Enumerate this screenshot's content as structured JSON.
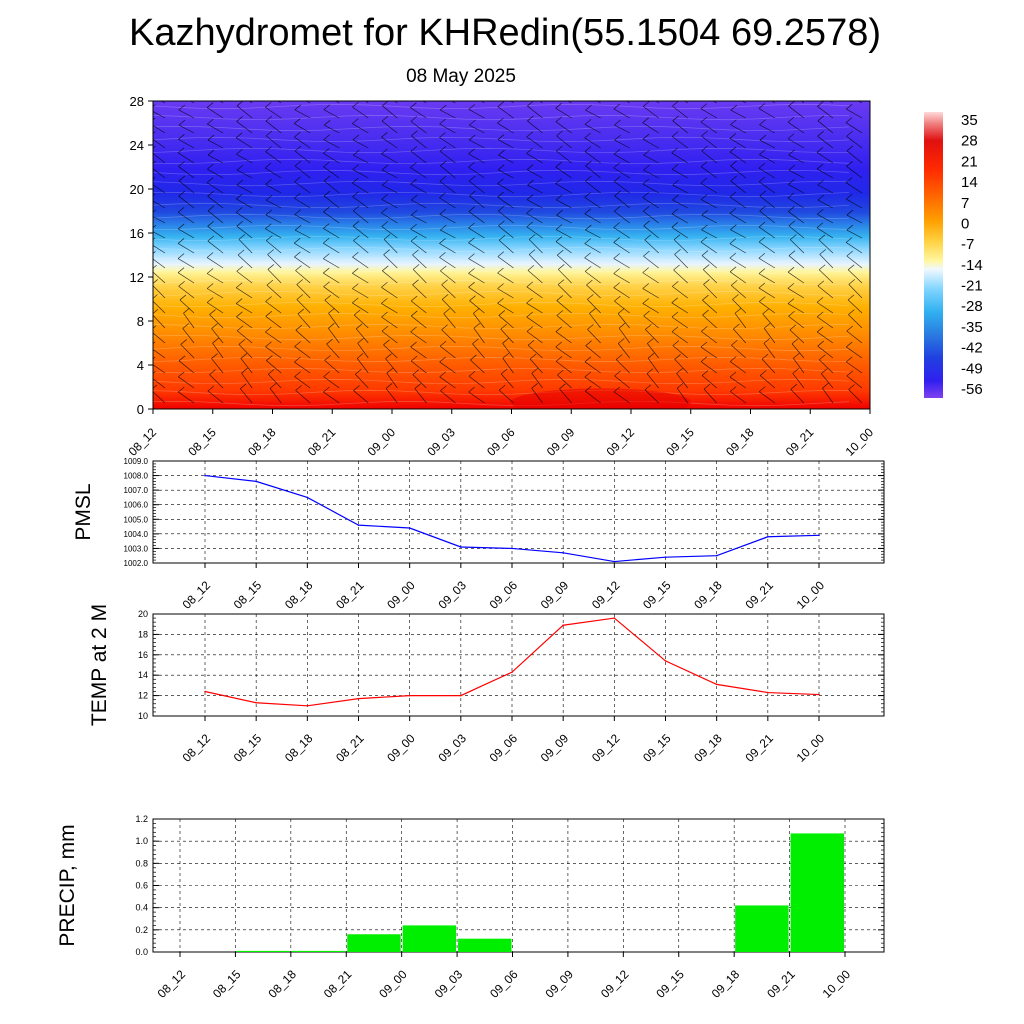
{
  "title": "Kazhydromet for KHRedin(55.1504 69.2578)",
  "subtitle": "08 May 2025",
  "colors": {
    "pmsl": "#0000ff",
    "temp": "#ff0000",
    "precip": "#00ee00"
  },
  "chart_data": [
    {
      "type": "heatmap",
      "name": "cross-section",
      "x_labels": [
        "08_12",
        "08_15",
        "08_18",
        "08_21",
        "09_00",
        "09_03",
        "09_06",
        "09_09",
        "09_12",
        "09_15",
        "09_18",
        "09_21",
        "10_00"
      ],
      "y_ticks": [
        "0",
        "4",
        "8",
        "12",
        "16",
        "20",
        "24",
        "28"
      ],
      "ylim": [
        0,
        28
      ],
      "colorbar_labels": [
        "35",
        "28",
        "21",
        "14",
        "7",
        "0",
        "-7",
        "-14",
        "-21",
        "-28",
        "-35",
        "-42",
        "-49",
        "-56"
      ],
      "temperature_profile": [
        {
          "level": 0,
          "value": 14
        },
        {
          "level": 4,
          "value": 11
        },
        {
          "level": 8,
          "value": 5
        },
        {
          "level": 12,
          "value": -1
        },
        {
          "level": 14,
          "value": -16
        },
        {
          "level": 16,
          "value": -28
        },
        {
          "level": 18,
          "value": -45
        },
        {
          "level": 20,
          "value": -56
        },
        {
          "level": 24,
          "value": -58
        },
        {
          "level": 28,
          "value": -57
        }
      ],
      "overlay": "wind barbs"
    },
    {
      "type": "line",
      "name": "pmsl",
      "ylabel": "PMSL",
      "x": [
        "08_12",
        "08_15",
        "08_18",
        "08_21",
        "09_00",
        "09_03",
        "09_06",
        "09_09",
        "09_12",
        "09_15",
        "09_18",
        "09_21",
        "10_00"
      ],
      "y_ticks": [
        "1002.0",
        "1003.0",
        "1004.0",
        "1005.0",
        "1006.0",
        "1007.0",
        "1008.0",
        "1009.0"
      ],
      "ylim": [
        1002.0,
        1009.0
      ],
      "values": [
        1008.0,
        1007.6,
        1006.5,
        1004.6,
        1004.4,
        1003.1,
        1003.0,
        1002.7,
        1002.1,
        1002.4,
        1002.5,
        1003.8,
        1003.9
      ],
      "grid": true
    },
    {
      "type": "line",
      "name": "temp",
      "ylabel": "TEMP at 2 M",
      "x": [
        "08_12",
        "08_15",
        "08_18",
        "08_21",
        "09_00",
        "09_03",
        "09_06",
        "09_09",
        "09_12",
        "09_15",
        "09_18",
        "09_21",
        "10_00"
      ],
      "y_ticks": [
        "10",
        "12",
        "14",
        "16",
        "18",
        "20"
      ],
      "ylim": [
        10,
        20
      ],
      "values": [
        12.4,
        11.3,
        11.0,
        11.7,
        12.0,
        12.0,
        14.3,
        18.9,
        19.6,
        15.4,
        13.1,
        12.3,
        12.1
      ],
      "grid": true
    },
    {
      "type": "bar",
      "name": "precip",
      "ylabel": "PRECIP, mm",
      "x": [
        "08_12",
        "08_15",
        "08_18",
        "08_21",
        "09_00",
        "09_03",
        "09_06",
        "09_09",
        "09_12",
        "09_15",
        "09_18",
        "09_21",
        "10_00"
      ],
      "y_ticks": [
        "0.0",
        "0.2",
        "0.4",
        "0.6",
        "0.8",
        "1.0",
        "1.2"
      ],
      "ylim": [
        0,
        1.2
      ],
      "values": [
        0,
        0,
        0.01,
        0.01,
        0.16,
        0.24,
        0.12,
        0,
        0,
        0,
        0,
        0.42,
        1.07
      ],
      "grid": true
    }
  ]
}
